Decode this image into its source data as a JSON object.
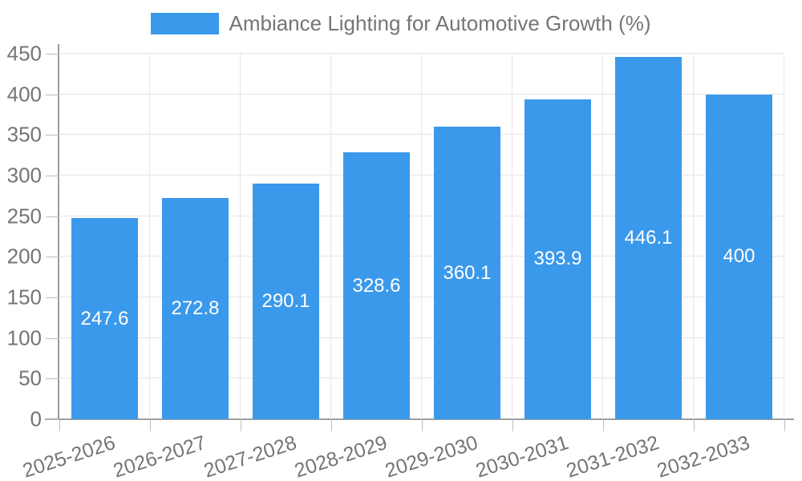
{
  "legend": {
    "label": "Ambiance Lighting for Automotive Growth (%)"
  },
  "chart_data": {
    "type": "bar",
    "title": "Ambiance Lighting for Automotive Growth (%)",
    "categories": [
      "2025-2026",
      "2026-2027",
      "2027-2028",
      "2028-2029",
      "2029-2030",
      "2030-2031",
      "2031-2032",
      "2032-2033"
    ],
    "series": [
      {
        "name": "Ambiance Lighting for Automotive Growth (%)",
        "values": [
          247.6,
          272.8,
          290.1,
          328.6,
          360.1,
          393.9,
          446.1,
          400
        ],
        "value_labels": [
          "247.6",
          "272.8",
          "290.1",
          "328.6",
          "360.1",
          "393.9",
          "446.1",
          "400"
        ]
      }
    ],
    "xlabel": "",
    "ylabel": "",
    "ylim": [
      0,
      450
    ],
    "yticks": [
      0,
      50,
      100,
      150,
      200,
      250,
      300,
      350,
      400,
      450
    ],
    "grid": true,
    "legend_position": "top",
    "xtick_rotation_deg": -18,
    "colors": {
      "bar": "#3B99EB",
      "bar_value_text": "#ffffff",
      "axis_text": "#757575",
      "gridline": "#e6e6e6",
      "axis_line": "#9e9e9e",
      "tick": "#bdbdbd",
      "background": "#ffffff"
    }
  }
}
